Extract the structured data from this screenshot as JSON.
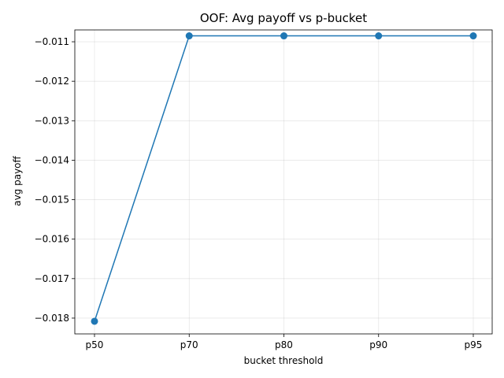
{
  "chart_data": {
    "type": "line",
    "title": "OOF: Avg payoff vs p-bucket",
    "xlabel": "bucket threshold",
    "ylabel": "avg payoff",
    "categories": [
      "p50",
      "p70",
      "p80",
      "p90",
      "p95"
    ],
    "series": [
      {
        "values": [
          -0.01808,
          -0.01085,
          -0.01085,
          -0.01085,
          -0.01085
        ],
        "color": "#1f77b4",
        "marker": "circle"
      }
    ],
    "ylim": [
      -0.0184,
      -0.0107
    ],
    "yticks": [
      -0.011,
      -0.012,
      -0.013,
      -0.014,
      -0.015,
      -0.016,
      -0.017,
      -0.018
    ],
    "ytick_labels": [
      "−0.011",
      "−0.012",
      "−0.013",
      "−0.014",
      "−0.015",
      "−0.016",
      "−0.017",
      "−0.018"
    ],
    "grid": true,
    "legend": "none"
  }
}
